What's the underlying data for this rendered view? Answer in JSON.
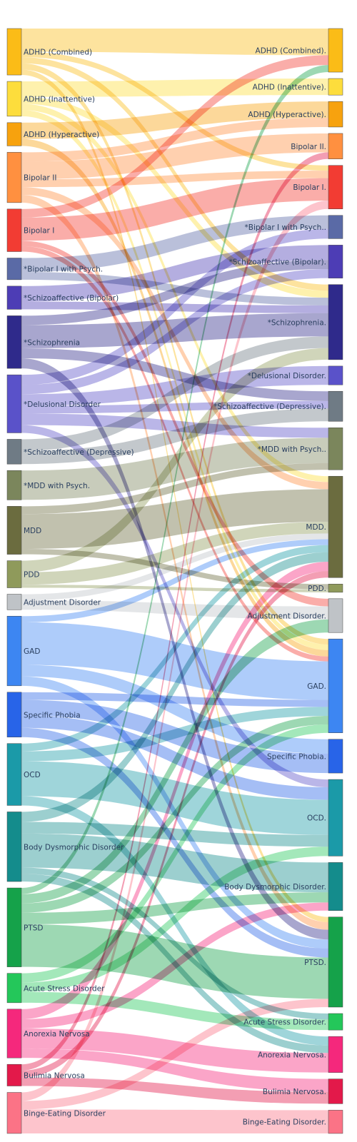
{
  "chart_data": {
    "type": "sankey",
    "title": "",
    "nodes_left": [
      {
        "id": "L0",
        "label": "ADHD (Combined)",
        "value": 6,
        "color": "#fbbc17"
      },
      {
        "id": "L1",
        "label": "ADHD (Inattentive)",
        "value": 4.5,
        "color": "#fddd3c"
      },
      {
        "id": "L2",
        "label": "ADHD (Hyperactive)",
        "value": 3,
        "color": "#f7a20e"
      },
      {
        "id": "L3",
        "label": "Bipolar II",
        "value": 6.5,
        "color": "#ff9040"
      },
      {
        "id": "L4",
        "label": "Bipolar I",
        "value": 5.5,
        "color": "#f23c33"
      },
      {
        "id": "L5",
        "label": "*Bipolar I with Psych.",
        "value": 2.8,
        "color": "#5a6aa6"
      },
      {
        "id": "L6",
        "label": "*Schizoaffective (Bipolar)",
        "value": 3,
        "color": "#4d3db5"
      },
      {
        "id": "L7",
        "label": "*Schizophrenia",
        "value": 6.8,
        "color": "#2f2a8b"
      },
      {
        "id": "L8",
        "label": "*Delusional Disorder",
        "value": 7.5,
        "color": "#5a52c9"
      },
      {
        "id": "L9",
        "label": "*Schizoaffective (Depressive)",
        "value": 3.2,
        "color": "#6f7b85"
      },
      {
        "id": "L10",
        "label": "*MDD with Psych.",
        "value": 3.8,
        "color": "#7b865c"
      },
      {
        "id": "L11",
        "label": "MDD",
        "value": 6.2,
        "color": "#6b6c3f"
      },
      {
        "id": "L12",
        "label": "PDD",
        "value": 3.5,
        "color": "#8f9a5b"
      },
      {
        "id": "L13",
        "label": "Adjustment Disorder",
        "value": 2,
        "color": "#bfc3c7"
      },
      {
        "id": "L14",
        "label": "GAD",
        "value": 9,
        "color": "#3d86f2"
      },
      {
        "id": "L15",
        "label": "Specific Phobia",
        "value": 5.8,
        "color": "#2864e8"
      },
      {
        "id": "L16",
        "label": "OCD",
        "value": 8,
        "color": "#1b9aa8"
      },
      {
        "id": "L17",
        "label": "Body Dysmorphic Disorder",
        "value": 9,
        "color": "#148c8c"
      },
      {
        "id": "L18",
        "label": "PTSD",
        "value": 10.2,
        "color": "#15a24a"
      },
      {
        "id": "L19",
        "label": "Acute Stress Disorder",
        "value": 3.8,
        "color": "#24c75a"
      },
      {
        "id": "L20",
        "label": "Anorexia Nervosa",
        "value": 6.3,
        "color": "#f5287c"
      },
      {
        "id": "L21",
        "label": "Bulimia Nervosa",
        "value": 2.8,
        "color": "#e3194a"
      },
      {
        "id": "L22",
        "label": "Binge-Eating Disorder",
        "value": 5.3,
        "color": "#fb7386"
      }
    ],
    "nodes_right": [
      {
        "id": "R0",
        "label": "ADHD (Combined).",
        "value": 5.8,
        "color": "#fbbc17"
      },
      {
        "id": "R1",
        "label": "ADHD (Inattentive).",
        "value": 2.2,
        "color": "#fddd3c"
      },
      {
        "id": "R2",
        "label": "ADHD (Hyperactive).",
        "value": 3.4,
        "color": "#f7a20e"
      },
      {
        "id": "R3",
        "label": "Bipolar II.",
        "value": 3.4,
        "color": "#ff9040"
      },
      {
        "id": "R4",
        "label": "Bipolar I.",
        "value": 5.8,
        "color": "#f23c33"
      },
      {
        "id": "R5",
        "label": "*Bipolar I with Psych..",
        "value": 3.1,
        "color": "#5a6aa6"
      },
      {
        "id": "R6",
        "label": "*Schizoaffective (Bipolar).",
        "value": 4.4,
        "color": "#4d3db5"
      },
      {
        "id": "R7",
        "label": "*Schizophrenia.",
        "value": 10,
        "color": "#2f2a8b"
      },
      {
        "id": "R8",
        "label": "*Delusional Disorder.",
        "value": 2.5,
        "color": "#5a52c9"
      },
      {
        "id": "R9",
        "label": "*Schizoaffective (Depressive).",
        "value": 4,
        "color": "#6f7b85"
      },
      {
        "id": "R10",
        "label": "*MDD with Psych..",
        "value": 5.6,
        "color": "#7b865c"
      },
      {
        "id": "R11",
        "label": "MDD.",
        "value": 13.5,
        "color": "#6b6c3f"
      },
      {
        "id": "R12",
        "label": "PDD.",
        "value": 1.1,
        "color": "#8f9a5b"
      },
      {
        "id": "R13",
        "label": "Adjustment Disorder.",
        "value": 4.5,
        "color": "#bfc3c7"
      },
      {
        "id": "R14",
        "label": "GAD.",
        "value": 12.5,
        "color": "#3d86f2"
      },
      {
        "id": "R15",
        "label": "Specific Phobia.",
        "value": 4.5,
        "color": "#2864e8"
      },
      {
        "id": "R16",
        "label": "OCD.",
        "value": 10.2,
        "color": "#1b9aa8"
      },
      {
        "id": "R17",
        "label": "Body Dysmorphic Disorder.",
        "value": 6.4,
        "color": "#148c8c"
      },
      {
        "id": "R18",
        "label": "PTSD.",
        "value": 12,
        "color": "#15a24a"
      },
      {
        "id": "R19",
        "label": "Acute Stress Disorder.",
        "value": 2.2,
        "color": "#24c75a"
      },
      {
        "id": "R20",
        "label": "Anorexia Nervosa.",
        "value": 4.8,
        "color": "#f5287c"
      },
      {
        "id": "R21",
        "label": "Bulimia Nervosa.",
        "value": 3.3,
        "color": "#e3194a"
      },
      {
        "id": "R22",
        "label": "Binge-Eating Disorder.",
        "value": 3.1,
        "color": "#fb7386"
      }
    ],
    "links": [
      {
        "source": "L0",
        "target": "R0",
        "value": 3
      },
      {
        "source": "L0",
        "target": "R7",
        "value": 0.8
      },
      {
        "source": "L0",
        "target": "R14",
        "value": 0.8
      },
      {
        "source": "L0",
        "target": "R4",
        "value": 0.7
      },
      {
        "source": "L0",
        "target": "R18",
        "value": 0.7
      },
      {
        "source": "L1",
        "target": "R1",
        "value": 2
      },
      {
        "source": "L1",
        "target": "R7",
        "value": 0.9
      },
      {
        "source": "L1",
        "target": "R11",
        "value": 0.8
      },
      {
        "source": "L1",
        "target": "R14",
        "value": 0.8
      },
      {
        "source": "L2",
        "target": "R2",
        "value": 2.1
      },
      {
        "source": "L2",
        "target": "R14",
        "value": 0.9
      },
      {
        "source": "L3",
        "target": "R3",
        "value": 2.3
      },
      {
        "source": "L3",
        "target": "R2",
        "value": 1.2
      },
      {
        "source": "L3",
        "target": "R4",
        "value": 1.0
      },
      {
        "source": "L3",
        "target": "R11",
        "value": 1.0
      },
      {
        "source": "L3",
        "target": "R18",
        "value": 1.0
      },
      {
        "source": "L4",
        "target": "R4",
        "value": 3
      },
      {
        "source": "L4",
        "target": "R0",
        "value": 1.1
      },
      {
        "source": "L4",
        "target": "R14",
        "value": 0.7
      },
      {
        "source": "L4",
        "target": "R13",
        "value": 0.7
      },
      {
        "source": "L5",
        "target": "R5",
        "value": 1.8
      },
      {
        "source": "L5",
        "target": "R7",
        "value": 1.0
      },
      {
        "source": "L6",
        "target": "R6",
        "value": 2.0
      },
      {
        "source": "L6",
        "target": "R7",
        "value": 1.0
      },
      {
        "source": "L7",
        "target": "R7",
        "value": 3.0
      },
      {
        "source": "L7",
        "target": "R6",
        "value": 1.2
      },
      {
        "source": "L7",
        "target": "R9",
        "value": 1.3
      },
      {
        "source": "L7",
        "target": "R18",
        "value": 1.3
      },
      {
        "source": "L8",
        "target": "R5",
        "value": 1.3
      },
      {
        "source": "L8",
        "target": "R6",
        "value": 1.2
      },
      {
        "source": "L8",
        "target": "R8",
        "value": 1.5
      },
      {
        "source": "L8",
        "target": "R10",
        "value": 1.5
      },
      {
        "source": "L8",
        "target": "R9",
        "value": 1.0
      },
      {
        "source": "L8",
        "target": "R16",
        "value": 1.0
      },
      {
        "source": "L9",
        "target": "R9",
        "value": 1.7
      },
      {
        "source": "L9",
        "target": "R7",
        "value": 1.5
      },
      {
        "source": "L10",
        "target": "R10",
        "value": 3.8
      },
      {
        "source": "L11",
        "target": "R11",
        "value": 4.5
      },
      {
        "source": "L11",
        "target": "R12",
        "value": 0.7
      },
      {
        "source": "L11",
        "target": "R10",
        "value": 1.0
      },
      {
        "source": "L12",
        "target": "R11",
        "value": 1.6
      },
      {
        "source": "L12",
        "target": "R12",
        "value": 0.4
      },
      {
        "source": "L12",
        "target": "R7",
        "value": 1.5
      },
      {
        "source": "L13",
        "target": "R13",
        "value": 1.2
      },
      {
        "source": "L13",
        "target": "R11",
        "value": 0.8
      },
      {
        "source": "L14",
        "target": "R14",
        "value": 5.5
      },
      {
        "source": "L14",
        "target": "R11",
        "value": 0.8
      },
      {
        "source": "L14",
        "target": "R15",
        "value": 1.5
      },
      {
        "source": "L14",
        "target": "R18",
        "value": 1.2
      },
      {
        "source": "L15",
        "target": "R15",
        "value": 2.0
      },
      {
        "source": "L15",
        "target": "R16",
        "value": 1.6
      },
      {
        "source": "L15",
        "target": "R18",
        "value": 1.2
      },
      {
        "source": "L15",
        "target": "R14",
        "value": 1.0
      },
      {
        "source": "L16",
        "target": "R16",
        "value": 4.5
      },
      {
        "source": "L16",
        "target": "R11",
        "value": 1.0
      },
      {
        "source": "L16",
        "target": "R14",
        "value": 1.3
      },
      {
        "source": "L16",
        "target": "R20",
        "value": 1.2
      },
      {
        "source": "L17",
        "target": "R17",
        "value": 4.4
      },
      {
        "source": "L17",
        "target": "R16",
        "value": 1.5
      },
      {
        "source": "L17",
        "target": "R11",
        "value": 1.3
      },
      {
        "source": "L17",
        "target": "R19",
        "value": 0.8
      },
      {
        "source": "L17",
        "target": "R20",
        "value": 1.0
      },
      {
        "source": "L18",
        "target": "R18",
        "value": 5.5
      },
      {
        "source": "L18",
        "target": "R13",
        "value": 1.2
      },
      {
        "source": "L18",
        "target": "R0",
        "value": 0.8
      },
      {
        "source": "L18",
        "target": "R14",
        "value": 1.2
      },
      {
        "source": "L18",
        "target": "R17",
        "value": 1.5
      },
      {
        "source": "L19",
        "target": "R19",
        "value": 1.4
      },
      {
        "source": "L19",
        "target": "R16",
        "value": 1.2
      },
      {
        "source": "L19",
        "target": "R14",
        "value": 1.2
      },
      {
        "source": "L20",
        "target": "R20",
        "value": 2.6
      },
      {
        "source": "L20",
        "target": "R11",
        "value": 1.3
      },
      {
        "source": "L20",
        "target": "R17",
        "value": 1.2
      },
      {
        "source": "L20",
        "target": "R21",
        "value": 1.2
      },
      {
        "source": "L21",
        "target": "R21",
        "value": 1.1
      },
      {
        "source": "L21",
        "target": "R11",
        "value": 0.9
      },
      {
        "source": "L21",
        "target": "R3",
        "value": 0.8
      },
      {
        "source": "L22",
        "target": "R22",
        "value": 3.1
      },
      {
        "source": "L22",
        "target": "R18",
        "value": 1.1
      },
      {
        "source": "L22",
        "target": "R4",
        "value": 1.1
      }
    ]
  }
}
